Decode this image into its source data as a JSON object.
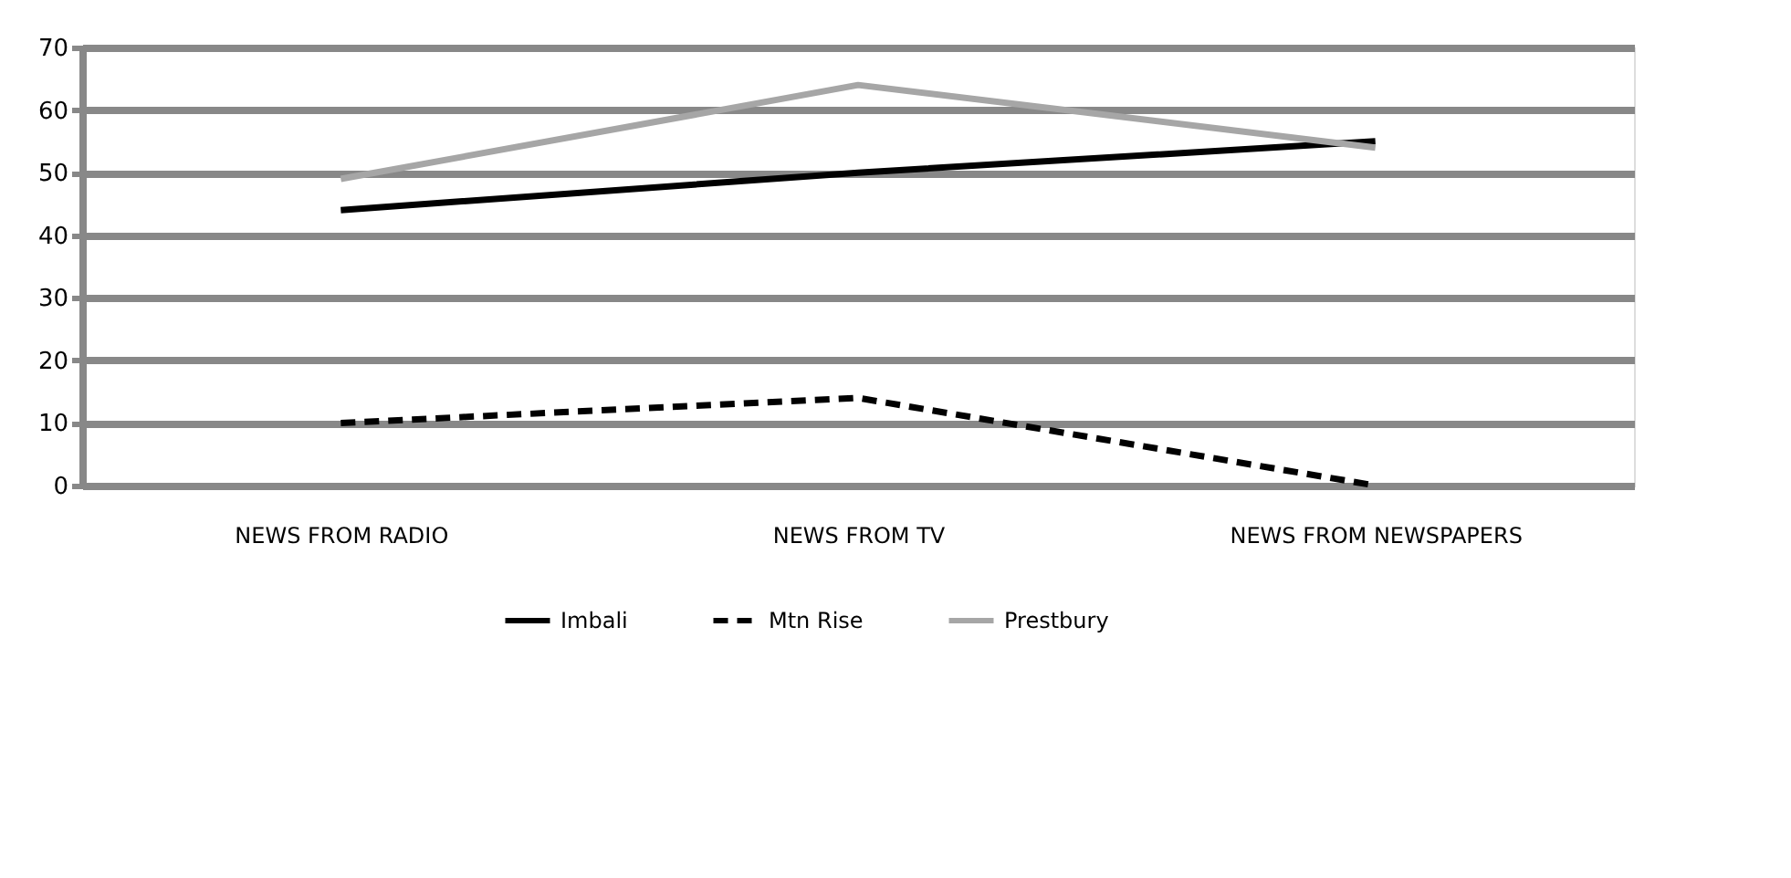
{
  "chart_data": {
    "type": "line",
    "categories": [
      "NEWS FROM RADIO",
      "NEWS FROM TV",
      "NEWS FROM NEWSPAPERS"
    ],
    "series": [
      {
        "name": "Imbali",
        "color": "#000000",
        "values": [
          44,
          50,
          55
        ],
        "line_style": "solid"
      },
      {
        "name": "Mtn Rise",
        "color": "#000000",
        "values": [
          10,
          14,
          0
        ],
        "line_style": "dashed"
      },
      {
        "name": "Prestbury",
        "color": "#a6a6a6",
        "values": [
          49,
          64,
          54
        ],
        "line_style": "solid"
      }
    ],
    "ylim": [
      0,
      70
    ],
    "yticks": [
      0,
      10,
      20,
      30,
      40,
      50,
      60,
      70
    ],
    "grid": "y",
    "legend": "bottom",
    "marker": "none"
  }
}
